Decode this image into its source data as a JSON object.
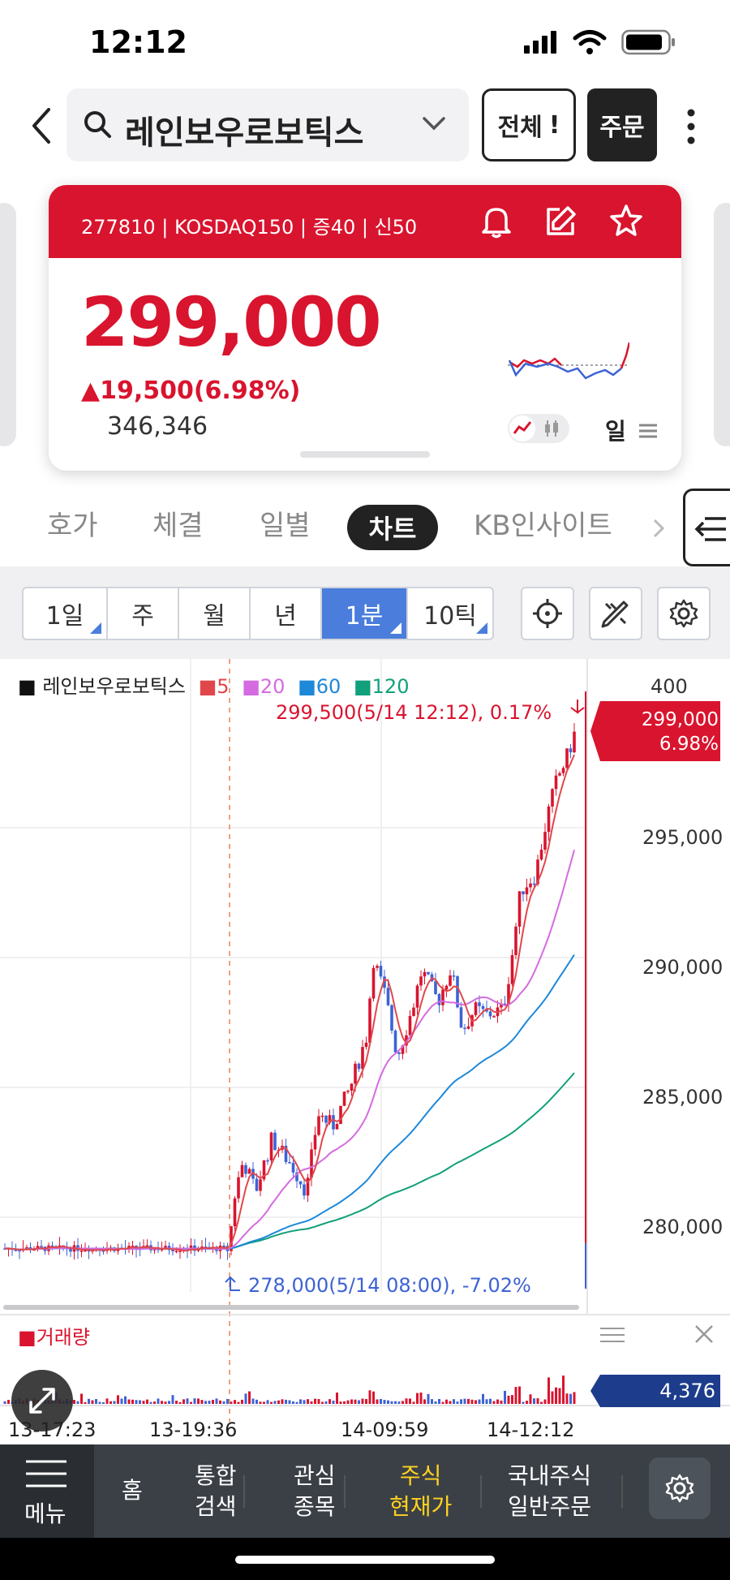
{
  "status": {
    "time": "12:12"
  },
  "header": {
    "search_text": "레인보우로보틱스",
    "all_label": "전체",
    "order_label": "주문"
  },
  "stock_card": {
    "info": "277810 | KOSDAQ150 | 증40 | 신50",
    "price": "299,000",
    "change": "▲19,500(6.98%)",
    "volume": "346,346",
    "period_label": "일"
  },
  "tabs": {
    "quote": "호가",
    "trade": "체결",
    "daily": "일별",
    "chart": "차트",
    "kb_insight": "KB인사이트"
  },
  "toolbar": {
    "p1": "1일",
    "p2": "주",
    "p3": "월",
    "p4": "년",
    "p5": "1분",
    "p6": "10틱"
  },
  "chart": {
    "legend_name": "레인보우로보틱스",
    "ma": [
      "5",
      "20",
      "60",
      "120"
    ],
    "high_annotation": "299,500(5/14 12:12), 0.17%",
    "low_annotation": "278,000(5/14 08:00), -7.02%",
    "current_price_tag": "299,000",
    "current_pct_tag": "6.98%",
    "y_ticks": [
      "400",
      "295,000",
      "290,000",
      "285,000",
      "280,000"
    ],
    "volume_label": "거래량",
    "volume_value": "4,376",
    "x_ticks": [
      "13-17:23",
      "13-19:36",
      "14-09:59",
      "14-12:12"
    ],
    "colors": {
      "up": "#d9142e",
      "down": "#3d63d4",
      "ma5": "#e0474c",
      "ma20": "#d46be0",
      "ma60": "#1e88d9",
      "ma120": "#11a07a"
    }
  },
  "chart_data": {
    "type": "line",
    "title": "레인보우로보틱스",
    "x": [
      "13-17:23",
      "13-19:36",
      "14-09:59",
      "14-12:12"
    ],
    "series": [
      {
        "name": "레인보우로보틱스",
        "values": [
          279000,
          278700,
          284500,
          299000
        ]
      }
    ],
    "annotations": [
      "299,500(5/14 12:12), 0.17%",
      "278,000(5/14 08:00), -7.02%"
    ],
    "xlabel": "",
    "ylabel": ""
  },
  "nav": {
    "menu": "메뉴",
    "home": "홈",
    "search1": "통합",
    "search2": "검색",
    "watch1": "관심",
    "watch2": "종목",
    "quote1": "주식",
    "quote2": "현재가",
    "domestic1": "국내주식",
    "domestic2": "일반주문"
  }
}
